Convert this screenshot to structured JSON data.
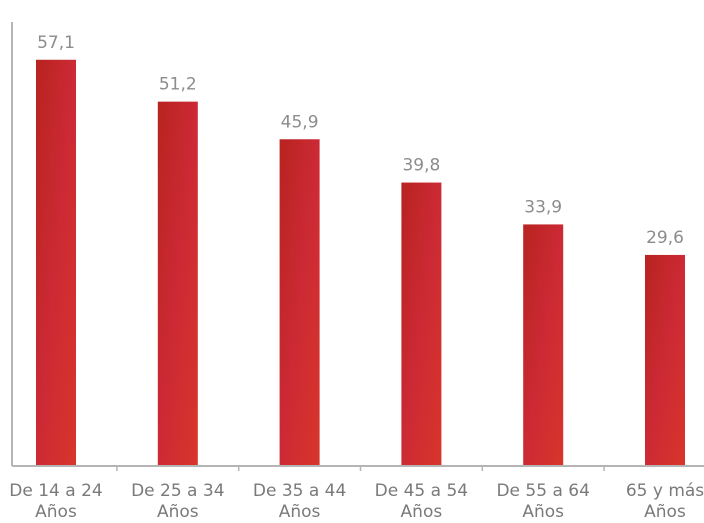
{
  "chart_data": {
    "type": "bar",
    "categories": [
      "De 14 a 24 Años",
      "De 25 a 34 Años",
      "De 35 a 44 Años",
      "De 45 a 54 Años",
      "De 55 a 64 Años",
      "65 y más Años"
    ],
    "values": [
      57.1,
      51.2,
      45.9,
      39.8,
      33.9,
      29.6
    ],
    "value_labels": [
      "57,1",
      "51,2",
      "45,9",
      "39,8",
      "33,9",
      "29,6"
    ],
    "color": "#c3262e",
    "ylim": [
      0,
      62
    ]
  }
}
